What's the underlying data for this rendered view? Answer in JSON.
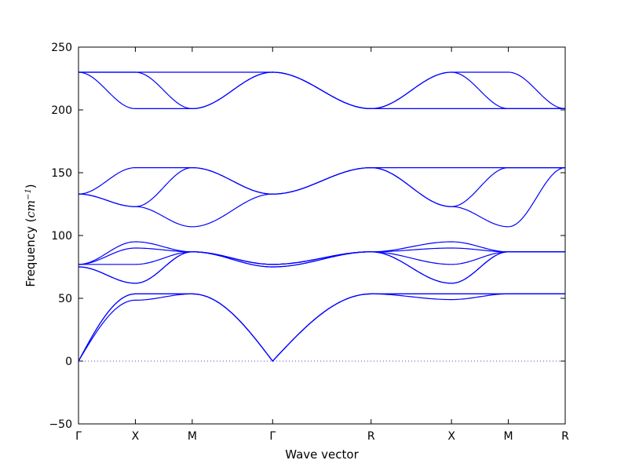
{
  "chart_data": {
    "type": "line",
    "title": "",
    "xlabel": "Wave vector",
    "ylabel_prefix": "Frequency (",
    "ylabel_math": "cm",
    "ylabel_exp": "−1",
    "ylabel_suffix": ")",
    "ylim": [
      -50,
      250
    ],
    "yticks": [
      -50,
      0,
      50,
      100,
      150,
      200,
      250
    ],
    "ytick_labels": [
      "−50",
      "0",
      "50",
      "100",
      "150",
      "200",
      "250"
    ],
    "x_points": [
      0,
      1,
      2,
      3,
      4,
      5,
      6,
      7
    ],
    "x_distances": [
      0,
      0.5,
      1.0,
      1.707,
      2.573,
      3.28,
      3.78,
      4.28
    ],
    "x_labels": [
      "Γ",
      "X",
      "M",
      "Γ",
      "R",
      "X",
      "M",
      "R"
    ],
    "zero_line": true,
    "grid": false,
    "line_color": "#0000ff",
    "series": [
      {
        "values_at_nodes": [
          0,
          48.5,
          53.5,
          0,
          53.5,
          49,
          53.5,
          53.5
        ]
      },
      {
        "values_at_nodes": [
          0,
          53.5,
          53.5,
          0,
          53.5,
          53.5,
          53.5,
          53.5
        ]
      },
      {
        "values_at_nodes": [
          0,
          53.5,
          53.5,
          0,
          53.5,
          53.5,
          53.5,
          53.5
        ]
      },
      {
        "values_at_nodes": [
          75,
          62,
          87,
          75,
          87,
          62,
          87,
          87
        ]
      },
      {
        "values_at_nodes": [
          75,
          62,
          87,
          75,
          87,
          62,
          87,
          87
        ]
      },
      {
        "values_at_nodes": [
          77,
          77,
          87,
          77,
          87,
          77,
          87,
          87
        ]
      },
      {
        "values_at_nodes": [
          77,
          90,
          87,
          77,
          87,
          90,
          87,
          87
        ]
      },
      {
        "values_at_nodes": [
          77,
          95,
          87,
          77,
          87,
          95,
          87,
          87
        ]
      },
      {
        "values_at_nodes": [
          133,
          123,
          107,
          133,
          154,
          123,
          107,
          154
        ]
      },
      {
        "values_at_nodes": [
          133,
          123,
          154,
          133,
          154,
          123,
          154,
          154
        ]
      },
      {
        "values_at_nodes": [
          133,
          154,
          154,
          133,
          154,
          154,
          154,
          154
        ]
      },
      {
        "values_at_nodes": [
          230,
          201,
          201,
          230,
          201,
          230,
          230,
          201
        ]
      },
      {
        "values_at_nodes": [
          230,
          230,
          201,
          230,
          201,
          201,
          201,
          201
        ]
      },
      {
        "values_at_nodes": [
          230,
          230,
          230,
          230,
          201,
          230,
          201,
          201
        ]
      }
    ]
  }
}
